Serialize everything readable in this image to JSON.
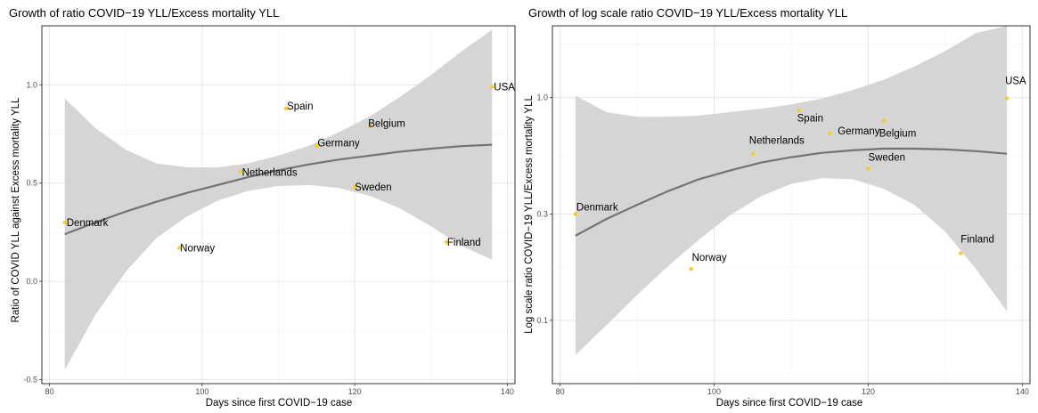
{
  "colors": {
    "point": "#f2cf20",
    "band": "#d3d3d3",
    "fit": "#737373",
    "grid_major": "#e6e6e6",
    "grid_minor": "#f2f2f2"
  },
  "chart_data": [
    {
      "type": "scatter",
      "title": "Growth of ratio COVID−19 YLL/Excess mortality YLL",
      "xlabel": "Days since first COVID−19 case",
      "ylabel": "Ratio of COVID YLL against Excess mortality YLL",
      "xlim": [
        79,
        141
      ],
      "ylim": [
        -0.52,
        1.3
      ],
      "xticks": [
        80,
        100,
        120,
        140
      ],
      "yticks": [
        -0.5,
        0.0,
        0.5,
        1.0
      ],
      "ytick_labels": [
        "-0.5",
        "0.0",
        "0.5",
        "1.0"
      ],
      "log_y": false,
      "grid": true,
      "points": [
        {
          "label": "Denmark",
          "x": 82,
          "y": 0.3
        },
        {
          "label": "Norway",
          "x": 97,
          "y": 0.17
        },
        {
          "label": "Netherlands",
          "x": 105,
          "y": 0.56
        },
        {
          "label": "Spain",
          "x": 111,
          "y": 0.88
        },
        {
          "label": "Germany",
          "x": 115,
          "y": 0.69
        },
        {
          "label": "Sweden",
          "x": 120,
          "y": 0.48
        },
        {
          "label": "Belgium",
          "x": 122,
          "y": 0.79
        },
        {
          "label": "Finland",
          "x": 132,
          "y": 0.2
        },
        {
          "label": "USA",
          "x": 138,
          "y": 0.99
        }
      ],
      "fit": {
        "x": [
          82,
          86,
          90,
          94,
          98,
          102,
          106,
          110,
          114,
          118,
          122,
          126,
          130,
          134,
          138
        ],
        "y": [
          0.24,
          0.3,
          0.355,
          0.405,
          0.45,
          0.49,
          0.53,
          0.565,
          0.595,
          0.62,
          0.64,
          0.66,
          0.675,
          0.688,
          0.695
        ],
        "lower": [
          -0.45,
          -0.17,
          0.05,
          0.22,
          0.33,
          0.41,
          0.46,
          0.485,
          0.49,
          0.475,
          0.435,
          0.37,
          0.28,
          0.18,
          0.11
        ],
        "upper": [
          0.93,
          0.78,
          0.67,
          0.6,
          0.58,
          0.58,
          0.6,
          0.64,
          0.69,
          0.76,
          0.84,
          0.94,
          1.05,
          1.17,
          1.28
        ]
      }
    },
    {
      "type": "scatter",
      "title": "Growth of log scale ratio COVID−19 YLL/Excess mortality YLL",
      "xlabel": "Days since first COVID−19 case",
      "ylabel": "Log scale ratio COVID−19 YLL/Excess mortality YLL",
      "xlim": [
        79,
        141
      ],
      "ylim": [
        0.052,
        2.1
      ],
      "xticks": [
        80,
        100,
        120,
        140
      ],
      "yticks": [
        0.1,
        0.3,
        1.0
      ],
      "ytick_labels": [
        "0.1",
        "0.3",
        "1.0"
      ],
      "log_y": true,
      "grid": true,
      "points": [
        {
          "label": "Denmark",
          "x": 82,
          "y": 0.3
        },
        {
          "label": "Norway",
          "x": 97,
          "y": 0.17
        },
        {
          "label": "Netherlands",
          "x": 105,
          "y": 0.56
        },
        {
          "label": "Spain",
          "x": 111,
          "y": 0.88
        },
        {
          "label": "Germany",
          "x": 115,
          "y": 0.69
        },
        {
          "label": "Sweden",
          "x": 120,
          "y": 0.48
        },
        {
          "label": "Belgium",
          "x": 122,
          "y": 0.79
        },
        {
          "label": "Finland",
          "x": 132,
          "y": 0.2
        },
        {
          "label": "USA",
          "x": 138,
          "y": 0.99
        }
      ],
      "fit": {
        "x": [
          82,
          86,
          90,
          94,
          98,
          102,
          106,
          110,
          114,
          118,
          122,
          126,
          130,
          134,
          138
        ],
        "y": [
          0.24,
          0.285,
          0.33,
          0.38,
          0.43,
          0.47,
          0.51,
          0.54,
          0.565,
          0.58,
          0.59,
          0.59,
          0.585,
          0.575,
          0.56
        ],
        "lower": [
          0.07,
          0.095,
          0.13,
          0.175,
          0.23,
          0.295,
          0.36,
          0.41,
          0.435,
          0.43,
          0.39,
          0.33,
          0.25,
          0.17,
          0.11
        ],
        "upper": [
          1.02,
          0.86,
          0.82,
          0.82,
          0.83,
          0.86,
          0.89,
          0.93,
          0.99,
          1.08,
          1.2,
          1.38,
          1.62,
          1.95,
          2.1
        ]
      }
    }
  ]
}
